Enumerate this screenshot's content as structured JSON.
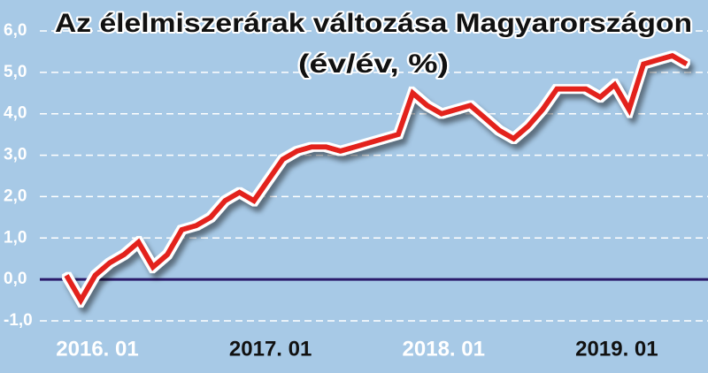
{
  "chart_data": {
    "type": "line",
    "title": "Az élelmiszerárak változása Magyarországon",
    "subtitle": "(év/év, %)",
    "categories": [
      "2016. 01",
      null,
      null,
      null,
      null,
      null,
      null,
      null,
      null,
      null,
      null,
      null,
      "2017. 01",
      null,
      null,
      null,
      null,
      null,
      null,
      null,
      null,
      null,
      null,
      null,
      "2018. 01",
      null,
      null,
      null,
      null,
      null,
      null,
      null,
      null,
      null,
      null,
      null,
      "2019. 01",
      null,
      null,
      null,
      null,
      null,
      null,
      null
    ],
    "values": [
      0.1,
      -0.5,
      0.1,
      0.4,
      0.6,
      0.9,
      0.3,
      0.6,
      1.2,
      1.3,
      1.5,
      1.9,
      2.1,
      1.9,
      2.4,
      2.9,
      3.1,
      3.2,
      3.2,
      3.1,
      3.2,
      3.3,
      3.4,
      3.5,
      4.5,
      4.2,
      4.0,
      4.1,
      4.2,
      3.9,
      3.6,
      3.4,
      3.7,
      4.1,
      4.6,
      4.6,
      4.6,
      4.4,
      4.7,
      4.1,
      5.2,
      5.3,
      5.4,
      5.2
    ],
    "color": "#e3241c",
    "zero_line_color": "#2b1b6b",
    "ylim": [
      -1.0,
      6.0
    ],
    "yticks": [
      {
        "value": -1,
        "label": "-1,0"
      },
      {
        "value": 0,
        "label": "0,0"
      },
      {
        "value": 1,
        "label": "1,0"
      },
      {
        "value": 2,
        "label": "2,0"
      },
      {
        "value": 3,
        "label": "3,0"
      },
      {
        "value": 4,
        "label": "4,0"
      },
      {
        "value": 5,
        "label": "5,0"
      },
      {
        "value": 6,
        "label": "6,0"
      }
    ],
    "grid": true
  }
}
